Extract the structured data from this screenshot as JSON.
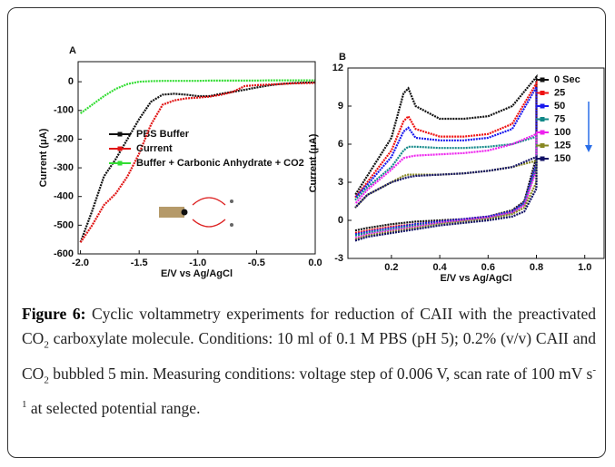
{
  "chart_data": [
    {
      "type": "line",
      "panel": "A",
      "xlabel": "E/V  vs Ag/AgCl",
      "ylabel": "Current (μA)",
      "x": [
        -2.0,
        -1.9,
        -1.8,
        -1.7,
        -1.6,
        -1.5,
        -1.4,
        -1.3,
        -1.2,
        -1.1,
        -1.0,
        -0.9,
        -0.8,
        -0.7,
        -0.6,
        -0.5,
        -0.4,
        -0.3,
        -0.2,
        -0.1,
        0.0
      ],
      "series": [
        {
          "name": "PBS Buffer",
          "color": "#111111",
          "values": [
            -560,
            -450,
            -330,
            -270,
            -200,
            -130,
            -70,
            -45,
            -42,
            -45,
            -50,
            -50,
            -42,
            -35,
            -28,
            -20,
            -13,
            -8,
            -5,
            -3,
            -2
          ]
        },
        {
          "name": "Current",
          "color": "#e01515",
          "values": [
            -560,
            -500,
            -430,
            -390,
            -330,
            -250,
            -150,
            -80,
            -65,
            -58,
            -55,
            -52,
            -45,
            -35,
            -15,
            -12,
            -10,
            -8,
            -6,
            -5,
            -4
          ]
        },
        {
          "name": "Buffer + Carbonic Anhydrate + CO2",
          "color": "#33dd33",
          "values": [
            -110,
            -80,
            -50,
            -25,
            -8,
            0,
            2,
            3,
            3,
            3,
            3,
            4,
            4,
            4,
            4,
            4,
            5,
            5,
            5,
            5,
            5
          ]
        }
      ],
      "xlim": [
        -2.02,
        0.0
      ],
      "xticks": [
        {
          "value": -2.0,
          "label": "-2.0"
        },
        -1.5,
        {
          "value": -1.0,
          "label": "-1.0"
        },
        -0.5,
        {
          "value": 0.0,
          "label": "0.0"
        }
      ],
      "ylim": [
        -600,
        70
      ],
      "yticks": [
        -600,
        -500,
        -400,
        -300,
        -200,
        -100,
        0
      ]
    },
    {
      "type": "line",
      "panel": "B",
      "xlabel": "E/V vs Ag/AgCl",
      "ylabel": "Current (μA)",
      "x": [
        0.05,
        0.1,
        0.2,
        0.3,
        0.4,
        0.5,
        0.6,
        0.7,
        0.75,
        0.8,
        0.8,
        0.7,
        0.6,
        0.5,
        0.4,
        0.3,
        0.27,
        0.25,
        0.2,
        0.1,
        0.05
      ],
      "series": [
        {
          "name": "0 Sec",
          "color": "#111111",
          "values": [
            -0.8,
            -0.6,
            -0.3,
            -0.1,
            0,
            0.1,
            0.3,
            0.8,
            1.5,
            5.0,
            11.3,
            9.0,
            8.2,
            8.0,
            8.0,
            9.0,
            10.4,
            10.0,
            6.5,
            3.5,
            2.0
          ]
        },
        {
          "name": "25",
          "color": "#ee1111",
          "values": [
            -1.0,
            -0.8,
            -0.5,
            -0.3,
            -0.1,
            0.1,
            0.3,
            0.7,
            1.4,
            4.5,
            10.8,
            7.6,
            6.8,
            6.6,
            6.6,
            7.2,
            8.2,
            7.8,
            5.5,
            3.0,
            1.8
          ]
        },
        {
          "name": "50",
          "color": "#1a1aee",
          "values": [
            -1.1,
            -0.9,
            -0.6,
            -0.3,
            -0.1,
            0.1,
            0.3,
            0.7,
            1.4,
            4.5,
            10.5,
            7.2,
            6.5,
            6.3,
            6.3,
            6.5,
            7.3,
            7.0,
            5.0,
            2.8,
            1.8
          ]
        },
        {
          "name": "75",
          "color": "#118888",
          "values": [
            -1.2,
            -1.0,
            -0.7,
            -0.4,
            -0.2,
            0,
            0.2,
            0.6,
            1.3,
            4.2,
            6.6,
            6.0,
            5.8,
            5.7,
            5.7,
            5.8,
            5.8,
            5.5,
            4.2,
            2.6,
            1.6
          ]
        },
        {
          "name": "100",
          "color": "#ee22ee",
          "values": [
            -1.4,
            -1.1,
            -0.8,
            -0.5,
            -0.2,
            0,
            0.2,
            0.6,
            1.2,
            4.0,
            6.8,
            6.0,
            5.5,
            5.3,
            5.2,
            5.1,
            5.0,
            4.9,
            4.0,
            2.4,
            1.3
          ]
        },
        {
          "name": "125",
          "color": "#888822",
          "values": [
            -1.5,
            -1.2,
            -0.9,
            -0.6,
            -0.3,
            -0.1,
            0.1,
            0.5,
            1.0,
            3.0,
            4.7,
            4.2,
            3.9,
            3.7,
            3.6,
            3.6,
            3.6,
            3.5,
            3.0,
            2.0,
            1.0
          ]
        },
        {
          "name": "150",
          "color": "#111166",
          "values": [
            -1.6,
            -1.3,
            -1.0,
            -0.7,
            -0.4,
            -0.2,
            0,
            0.3,
            0.7,
            2.5,
            5.0,
            4.2,
            3.9,
            3.7,
            3.6,
            3.5,
            3.4,
            3.3,
            3.0,
            2.0,
            1.0
          ]
        }
      ],
      "xlim": [
        0.02,
        1.08
      ],
      "xticks": [
        0.2,
        0.4,
        0.6,
        0.8,
        {
          "value": 1.0,
          "label": "1.0"
        }
      ],
      "ylim": [
        -3,
        12
      ],
      "yticks": [
        -3,
        0,
        3,
        6,
        9,
        12
      ]
    }
  ],
  "caption": {
    "label": "Figure 6:",
    "parts": [
      " Cyclic voltammetry experiments for reduction of CAII with the preactivated CO",
      "2",
      " carboxylate molecule. Conditions: 10 ml of 0.1 M PBS (pH 5); 0.2% (v/v) CAII and CO",
      "2",
      " bubbled 5 min. Measuring conditions: voltage step of 0.006 V, scan rate of 100 mV s",
      "-1",
      " at selected potential range."
    ]
  }
}
